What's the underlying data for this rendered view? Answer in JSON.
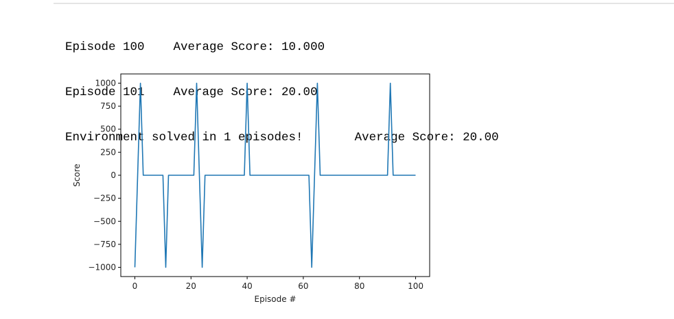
{
  "output": {
    "lines": [
      {
        "episode": "Episode 100",
        "avg": "Average Score: 10.000"
      },
      {
        "episode": "Episode 101",
        "avg": "Average Score: 20.00"
      },
      {
        "episode": "Environment solved in 1 episodes!",
        "avg": "Average Score: 20.00"
      }
    ]
  },
  "chart_data": {
    "type": "line",
    "title": "",
    "xlabel": "Episode #",
    "ylabel": "Score",
    "xlim": [
      -5,
      105
    ],
    "ylim": [
      -1100,
      1100
    ],
    "xticks": [
      0,
      20,
      40,
      60,
      80,
      100
    ],
    "yticks": [
      1000,
      750,
      500,
      250,
      0,
      -250,
      -500,
      -750,
      -1000
    ],
    "xtick_labels": [
      "0",
      "20",
      "40",
      "60",
      "80",
      "100"
    ],
    "ytick_labels": [
      "1000",
      "750",
      "500",
      "250",
      "0",
      "−250",
      "−500",
      "−750",
      "−1000"
    ],
    "grid": false,
    "line_color": "#1f77b4",
    "series": [
      {
        "x": [
          0,
          2,
          3,
          10,
          11,
          12,
          21,
          22,
          23,
          24,
          25,
          39,
          40,
          41,
          62,
          63,
          64,
          65,
          66,
          90,
          91,
          92,
          100
        ],
        "y": [
          -1000,
          1000,
          0,
          0,
          -1000,
          0,
          0,
          1000,
          0,
          -1000,
          0,
          0,
          1000,
          0,
          0,
          -1000,
          0,
          1000,
          0,
          0,
          1000,
          0,
          0
        ]
      }
    ]
  }
}
